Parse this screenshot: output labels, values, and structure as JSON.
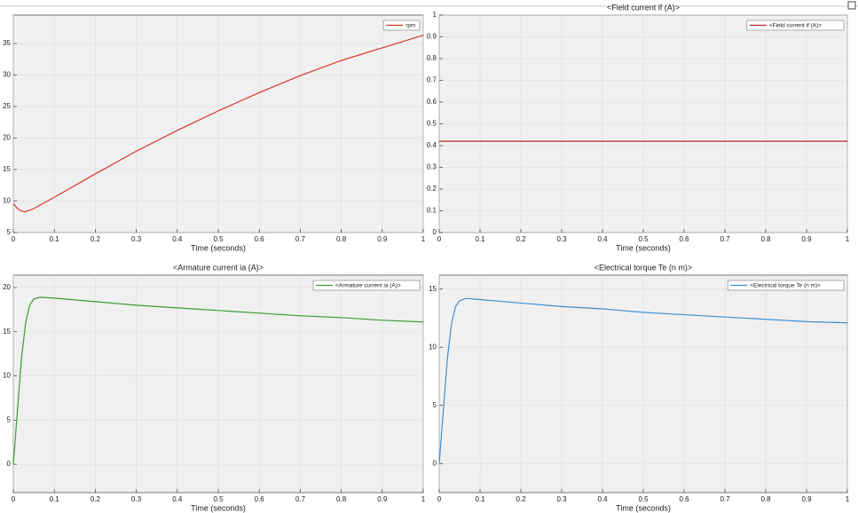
{
  "chart_data": [
    {
      "type": "line",
      "x_label": "Time (seconds)",
      "x": [
        0,
        0.01,
        0.02,
        0.03,
        0.05,
        0.1,
        0.2,
        0.3,
        0.4,
        0.5,
        0.6,
        0.7,
        0.8,
        0.9,
        1
      ],
      "series": [
        {
          "name": "rpm",
          "color": "#d9342b",
          "values": [
            9.6,
            8.8,
            8.4,
            8.3,
            8.8,
            10.6,
            14.3,
            17.9,
            21.2,
            24.3,
            27.2,
            29.9,
            32.3,
            34.3,
            36.3
          ]
        }
      ],
      "xlim": [
        0,
        1
      ],
      "xticks": [
        0,
        0.1,
        0.2,
        0.3,
        0.4,
        0.5,
        0.6,
        0.7,
        0.8,
        0.9,
        1
      ],
      "ylim": [
        5,
        39.5
      ],
      "yticks": [
        5,
        10,
        15,
        20,
        25,
        30,
        35
      ],
      "grid": true,
      "legend": "top-right"
    },
    {
      "type": "line",
      "title": "<Field current if (A)>",
      "x_label": "Time (seconds)",
      "x": [
        0,
        1
      ],
      "series": [
        {
          "name": "<Field current if (A)>",
          "color": "#b8242b",
          "values": [
            0.42,
            0.42
          ]
        }
      ],
      "xlim": [
        0,
        1
      ],
      "xticks": [
        0,
        0.1,
        0.2,
        0.3,
        0.4,
        0.5,
        0.6,
        0.7,
        0.8,
        0.9,
        1
      ],
      "ylim": [
        0,
        1
      ],
      "yticks": [
        0,
        0.1,
        0.2,
        0.3,
        0.4,
        0.5,
        0.6,
        0.7,
        0.8,
        0.9,
        1
      ],
      "grid": true,
      "legend": "top-right"
    },
    {
      "type": "line",
      "title": "<Armature current ia (A)>",
      "x_label": "Time (seconds)",
      "x": [
        0,
        0.01,
        0.02,
        0.03,
        0.04,
        0.05,
        0.065,
        0.1,
        0.2,
        0.3,
        0.4,
        0.5,
        0.6,
        0.7,
        0.8,
        0.9,
        1
      ],
      "series": [
        {
          "name": "<Armature current ia (A)>",
          "color": "#3c9a35",
          "values": [
            0,
            6,
            12,
            16,
            18,
            18.7,
            18.9,
            18.8,
            18.4,
            18.0,
            17.7,
            17.4,
            17.1,
            16.8,
            16.6,
            16.3,
            16.1
          ]
        }
      ],
      "xlim": [
        0,
        1
      ],
      "xticks": [
        0,
        0.1,
        0.2,
        0.3,
        0.4,
        0.5,
        0.6,
        0.7,
        0.8,
        0.9,
        1
      ],
      "ylim": [
        -3.2,
        21.4
      ],
      "yticks": [
        0,
        5,
        10,
        15,
        20
      ],
      "grid": true,
      "legend": "top-right"
    },
    {
      "type": "line",
      "title": "<Electrical torque Te (n m)>",
      "x_label": "Time (seconds)",
      "x": [
        0,
        0.01,
        0.02,
        0.03,
        0.04,
        0.05,
        0.065,
        0.1,
        0.2,
        0.3,
        0.4,
        0.5,
        0.6,
        0.7,
        0.8,
        0.9,
        1
      ],
      "series": [
        {
          "name": "<Electrical torque Te (n m)>",
          "color": "#3d8fd1",
          "values": [
            0,
            4.5,
            9,
            12,
            13.5,
            14,
            14.2,
            14.1,
            13.8,
            13.5,
            13.3,
            13.0,
            12.8,
            12.6,
            12.4,
            12.2,
            12.1
          ]
        }
      ],
      "xlim": [
        0,
        1
      ],
      "xticks": [
        0,
        0.1,
        0.2,
        0.3,
        0.4,
        0.5,
        0.6,
        0.7,
        0.8,
        0.9,
        1
      ],
      "ylim": [
        -2.5,
        16.2
      ],
      "yticks": [
        0,
        5,
        10,
        15
      ],
      "grid": true,
      "legend": "top-right"
    }
  ]
}
